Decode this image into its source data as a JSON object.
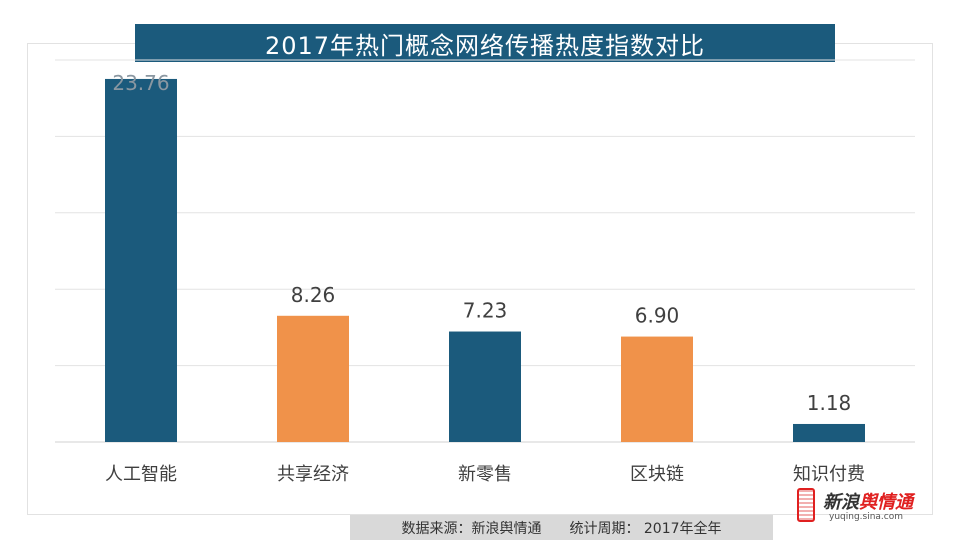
{
  "title": "2017年热门概念网络传播热度指数对比",
  "chart_data": {
    "type": "bar",
    "categories": [
      "人工智能",
      "共享经济",
      "新零售",
      "区块链",
      "知识付费"
    ],
    "values": [
      23.76,
      8.26,
      7.23,
      6.9,
      1.18
    ],
    "value_labels": [
      "23.76",
      "8.26",
      "7.23",
      "6.90",
      "1.18"
    ],
    "colors": [
      "#1b5a7c",
      "#f0924a",
      "#1b5a7c",
      "#f0924a",
      "#1b5a7c"
    ],
    "ylim": [
      0,
      25
    ],
    "grid": true,
    "legend": "none"
  },
  "footer": {
    "source": "数据来源：新浪舆情通",
    "period": "统计周期： 2017年全年"
  },
  "logo": {
    "brand": "新浪舆情通",
    "url": "yuqing.sina.com"
  }
}
